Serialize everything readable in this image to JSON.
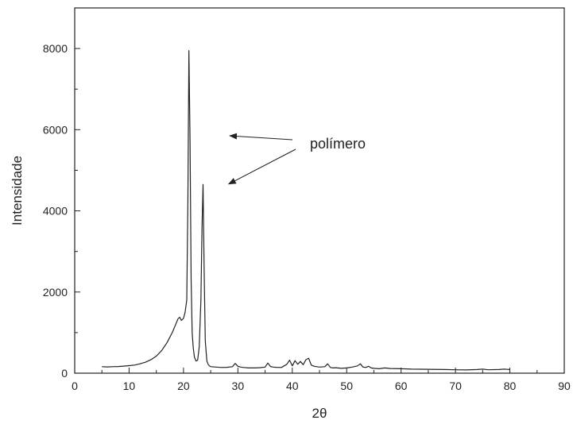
{
  "chart_data": {
    "type": "line",
    "title": "",
    "xlabel": "2θ",
    "ylabel": "Intensidade",
    "xlim": [
      0,
      90
    ],
    "ylim": [
      0,
      9000
    ],
    "xticks": [
      0,
      10,
      20,
      30,
      40,
      50,
      60,
      70,
      80,
      90
    ],
    "xtick_labels": [
      "0",
      "10",
      "20",
      "30",
      "40",
      "50",
      "60",
      "70",
      "80",
      "90"
    ],
    "yticks": [
      0,
      2000,
      4000,
      6000,
      8000
    ],
    "ytick_labels": [
      "0",
      "2000",
      "4000",
      "6000",
      "8000"
    ],
    "grid": false,
    "legend": "none",
    "annotation": {
      "text": "polímero",
      "arrow_targets": [
        {
          "x": 28.5,
          "y": 5850
        },
        {
          "x": 28.3,
          "y": 4660
        }
      ]
    },
    "series": [
      {
        "x": [
          5,
          6,
          7,
          8,
          9,
          10,
          11,
          12,
          13,
          14,
          15,
          16,
          17,
          18,
          18.5,
          19,
          19.3,
          19.6,
          20,
          20.3,
          20.6,
          20.8,
          21.0,
          21.2,
          21.4,
          21.6,
          21.8,
          22.0,
          22.3,
          22.6,
          22.9,
          23.2,
          23.4,
          23.6,
          23.8,
          24.0,
          24.3,
          24.6,
          25,
          26,
          27,
          28,
          29,
          29.5,
          30,
          30.5,
          31,
          32,
          33,
          34,
          35,
          35.5,
          36,
          36.5,
          37,
          38,
          39,
          39.5,
          40,
          40.5,
          41,
          41.5,
          42,
          42.5,
          43,
          43.5,
          44,
          45,
          46,
          46.5,
          47,
          47.5,
          48,
          49,
          50,
          51,
          52,
          52.5,
          53,
          53.5,
          54,
          54.5,
          55,
          56,
          57,
          58,
          60,
          62,
          65,
          68,
          70,
          72,
          74,
          75,
          76,
          78,
          79,
          80
        ],
        "y": [
          160,
          155,
          160,
          165,
          175,
          185,
          200,
          230,
          270,
          330,
          420,
          560,
          760,
          1020,
          1180,
          1340,
          1380,
          1300,
          1350,
          1500,
          1800,
          4200,
          7950,
          5800,
          2300,
          1000,
          620,
          400,
          300,
          320,
          650,
          1800,
          3600,
          4650,
          2500,
          800,
          300,
          200,
          160,
          150,
          140,
          145,
          160,
          240,
          170,
          150,
          140,
          130,
          130,
          135,
          150,
          250,
          165,
          150,
          145,
          140,
          220,
          320,
          180,
          310,
          220,
          290,
          210,
          330,
          370,
          200,
          170,
          150,
          160,
          230,
          140,
          130,
          135,
          120,
          130,
          150,
          180,
          230,
          150,
          140,
          170,
          130,
          120,
          110,
          130,
          115,
          110,
          100,
          95,
          90,
          85,
          80,
          90,
          100,
          85,
          90,
          100,
          90
        ]
      }
    ]
  }
}
